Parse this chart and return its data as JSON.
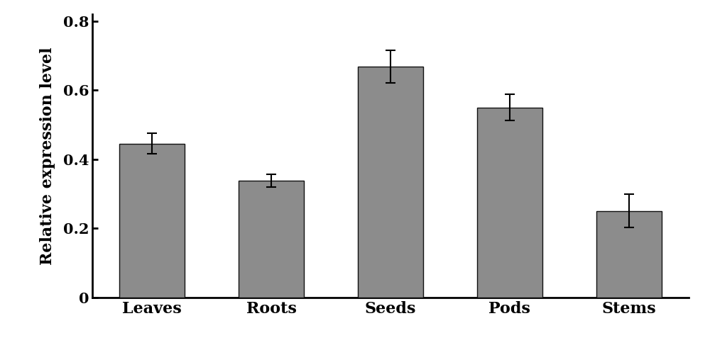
{
  "categories": [
    "Leaves",
    "Roots",
    "Seeds",
    "Pods",
    "Stems"
  ],
  "values": [
    0.445,
    0.338,
    0.668,
    0.55,
    0.25
  ],
  "errors": [
    0.03,
    0.018,
    0.048,
    0.038,
    0.048
  ],
  "bar_color": "#8c8c8c",
  "bar_edgecolor": "#111111",
  "ylabel": "Relative expression level",
  "ylim": [
    0,
    0.82
  ],
  "yticks": [
    0,
    0.2,
    0.4,
    0.6,
    0.8
  ],
  "bar_width": 0.55,
  "figsize": [
    10.0,
    4.94
  ],
  "dpi": 100,
  "ylabel_fontsize": 16,
  "tick_fontsize": 15,
  "xlabel_fontsize": 16,
  "background_color": "#ffffff"
}
